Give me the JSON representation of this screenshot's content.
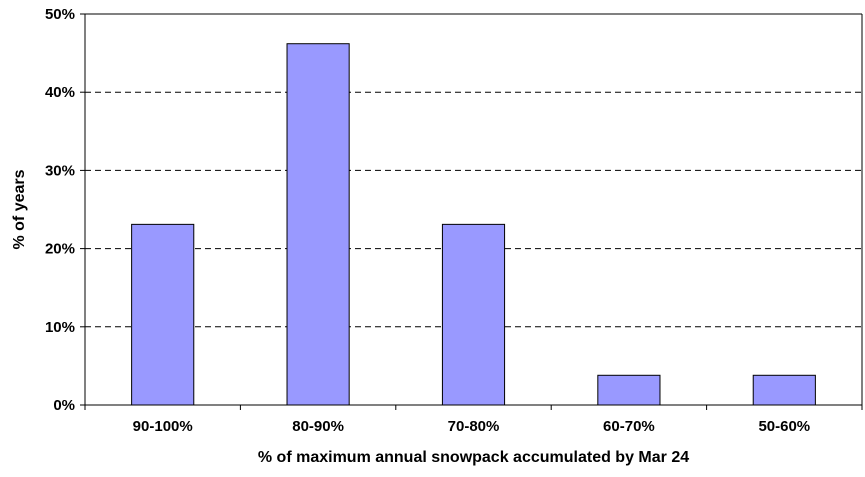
{
  "chart_data": {
    "type": "bar",
    "title": "",
    "xlabel": "% of maximum annual snowpack accumulated by Mar 24",
    "ylabel": "% of years",
    "categories": [
      "90-100%",
      "80-90%",
      "70-80%",
      "60-70%",
      "50-60%"
    ],
    "values": [
      23.1,
      46.2,
      23.1,
      3.8,
      3.8
    ],
    "ylim": [
      0,
      50
    ],
    "yticks": [
      0,
      10,
      20,
      30,
      40,
      50
    ],
    "ytick_labels": [
      "0%",
      "10%",
      "20%",
      "30%",
      "40%",
      "50%"
    ],
    "grid": "horizontal dashed",
    "legend": "none",
    "colors": {
      "bar_fill": "#9999ff",
      "bar_stroke": "#000000",
      "grid": "#000000",
      "background": "#ffffff"
    }
  }
}
